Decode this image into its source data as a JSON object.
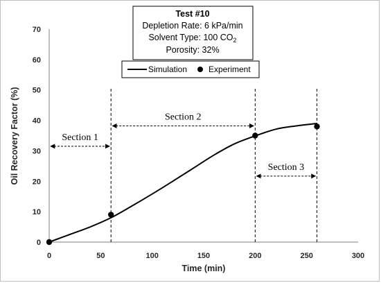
{
  "chart_data": {
    "type": "line",
    "xlabel": "Time (min)",
    "ylabel": "Oil Recovery Factor (%)",
    "xlim": [
      0,
      300
    ],
    "ylim": [
      0,
      70
    ],
    "xticks": [
      "0",
      "50",
      "100",
      "150",
      "200",
      "250",
      "300"
    ],
    "yticks": [
      "0",
      "10",
      "20",
      "30",
      "40",
      "50",
      "60",
      "70"
    ],
    "grid": false,
    "legend_position": "top-center",
    "info_box": {
      "title": "Test #10",
      "lines": [
        "Depletion Rate: 6 kPa/min",
        "Solvent Type: 100 CO",
        "Porosity: 32%"
      ],
      "co2_subscript": "2"
    },
    "series": [
      {
        "name": "Simulation",
        "style": "line",
        "color": "#000000",
        "x": [
          0,
          20,
          40,
          60,
          80,
          100,
          120,
          140,
          160,
          180,
          200,
          220,
          240,
          260
        ],
        "y": [
          0.0,
          2.5,
          5.0,
          8.0,
          11.8,
          15.8,
          20.0,
          24.3,
          28.6,
          32.3,
          34.9,
          37.1,
          38.2,
          39.0
        ]
      },
      {
        "name": "Experiment",
        "style": "marker",
        "color": "#000000",
        "x": [
          0,
          60,
          200,
          260
        ],
        "y": [
          0,
          9,
          35,
          38
        ]
      }
    ],
    "sections": [
      {
        "label": "Section 1",
        "x_start": 0,
        "x_end": 60,
        "arrow_y": 31.5
      },
      {
        "label": "Section 2",
        "x_start": 60,
        "x_end": 200,
        "arrow_y": 38.2
      },
      {
        "label": "Section 3",
        "x_start": 200,
        "x_end": 260,
        "arrow_y": 21.7
      }
    ],
    "vlines_x": [
      60,
      200,
      260
    ]
  }
}
